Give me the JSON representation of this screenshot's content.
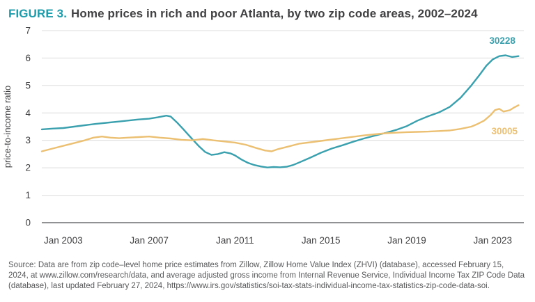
{
  "figure": {
    "label": "FIGURE 3.",
    "label_color": "#1d9cab",
    "title": "Home prices in rich and poor Atlanta, by two zip code areas, 2002–2024",
    "title_color": "#414042"
  },
  "chart_data": {
    "type": "line",
    "title": "Home prices in rich and poor Atlanta, by two zip code areas, 2002–2024",
    "xlabel": "",
    "ylabel": "price-to-income ratio",
    "ylim": [
      0,
      7
    ],
    "yticks": [
      0,
      1,
      2,
      3,
      4,
      5,
      6,
      7
    ],
    "xlim": [
      2002,
      2024.45
    ],
    "xticks": [
      {
        "year": 2003,
        "label": "Jan 2003"
      },
      {
        "year": 2007,
        "label": "Jan 2007"
      },
      {
        "year": 2011,
        "label": "Jan 2011"
      },
      {
        "year": 2015,
        "label": "Jan 2015"
      },
      {
        "year": 2019,
        "label": "Jan 2019"
      },
      {
        "year": 2023,
        "label": "Jan 2023"
      }
    ],
    "grid": "horizontal gridlines at integer values, baseline darker",
    "legend_position": "end-of-line labels at right",
    "axis_text_color": "#414042",
    "gridline_color": "#dcdcdc",
    "baseline_color": "#6d6e71",
    "series": [
      {
        "name": "30228",
        "color": "#3aa0ae",
        "label_pos": [
          2023.45,
          6.52
        ],
        "points": [
          [
            2002,
            3.4
          ],
          [
            2002.5,
            3.43
          ],
          [
            2003,
            3.45
          ],
          [
            2003.5,
            3.5
          ],
          [
            2004,
            3.55
          ],
          [
            2004.5,
            3.6
          ],
          [
            2005,
            3.64
          ],
          [
            2005.5,
            3.68
          ],
          [
            2006,
            3.72
          ],
          [
            2006.5,
            3.76
          ],
          [
            2007,
            3.79
          ],
          [
            2007.4,
            3.84
          ],
          [
            2007.8,
            3.9
          ],
          [
            2008,
            3.87
          ],
          [
            2008.3,
            3.65
          ],
          [
            2008.6,
            3.4
          ],
          [
            2009,
            3.05
          ],
          [
            2009.3,
            2.8
          ],
          [
            2009.6,
            2.58
          ],
          [
            2009.9,
            2.47
          ],
          [
            2010.2,
            2.5
          ],
          [
            2010.5,
            2.57
          ],
          [
            2010.8,
            2.52
          ],
          [
            2011,
            2.45
          ],
          [
            2011.3,
            2.3
          ],
          [
            2011.6,
            2.18
          ],
          [
            2011.9,
            2.1
          ],
          [
            2012.2,
            2.05
          ],
          [
            2012.5,
            2.01
          ],
          [
            2012.8,
            2.03
          ],
          [
            2013.1,
            2.02
          ],
          [
            2013.4,
            2.04
          ],
          [
            2013.7,
            2.1
          ],
          [
            2014,
            2.2
          ],
          [
            2014.5,
            2.37
          ],
          [
            2015,
            2.55
          ],
          [
            2015.5,
            2.7
          ],
          [
            2016,
            2.82
          ],
          [
            2016.5,
            2.95
          ],
          [
            2017,
            3.07
          ],
          [
            2017.5,
            3.17
          ],
          [
            2018,
            3.27
          ],
          [
            2018.5,
            3.38
          ],
          [
            2019,
            3.52
          ],
          [
            2019.5,
            3.72
          ],
          [
            2020,
            3.88
          ],
          [
            2020.5,
            4.02
          ],
          [
            2021,
            4.22
          ],
          [
            2021.5,
            4.55
          ],
          [
            2022,
            5.0
          ],
          [
            2022.4,
            5.4
          ],
          [
            2022.7,
            5.72
          ],
          [
            2023,
            5.95
          ],
          [
            2023.3,
            6.07
          ],
          [
            2023.6,
            6.1
          ],
          [
            2023.9,
            6.04
          ],
          [
            2024.2,
            6.07
          ]
        ]
      },
      {
        "name": "30005",
        "color": "#ecc073",
        "label_pos": [
          2023.55,
          3.22
        ],
        "points": [
          [
            2002,
            2.6
          ],
          [
            2002.5,
            2.7
          ],
          [
            2003,
            2.8
          ],
          [
            2003.5,
            2.9
          ],
          [
            2004,
            3.0
          ],
          [
            2004.4,
            3.1
          ],
          [
            2004.8,
            3.14
          ],
          [
            2005.2,
            3.1
          ],
          [
            2005.6,
            3.08
          ],
          [
            2006,
            3.1
          ],
          [
            2006.5,
            3.12
          ],
          [
            2007,
            3.14
          ],
          [
            2007.5,
            3.1
          ],
          [
            2008,
            3.07
          ],
          [
            2008.5,
            3.02
          ],
          [
            2009,
            3.0
          ],
          [
            2009.5,
            3.05
          ],
          [
            2010,
            3.0
          ],
          [
            2010.5,
            2.96
          ],
          [
            2011,
            2.92
          ],
          [
            2011.5,
            2.84
          ],
          [
            2012,
            2.72
          ],
          [
            2012.4,
            2.63
          ],
          [
            2012.7,
            2.6
          ],
          [
            2013,
            2.68
          ],
          [
            2013.5,
            2.78
          ],
          [
            2014,
            2.88
          ],
          [
            2014.5,
            2.93
          ],
          [
            2015,
            2.98
          ],
          [
            2015.5,
            3.03
          ],
          [
            2016,
            3.08
          ],
          [
            2016.5,
            3.13
          ],
          [
            2017,
            3.18
          ],
          [
            2017.5,
            3.22
          ],
          [
            2018,
            3.26
          ],
          [
            2018.5,
            3.28
          ],
          [
            2019,
            3.3
          ],
          [
            2019.5,
            3.31
          ],
          [
            2020,
            3.32
          ],
          [
            2020.5,
            3.34
          ],
          [
            2021,
            3.36
          ],
          [
            2021.5,
            3.42
          ],
          [
            2022,
            3.5
          ],
          [
            2022.3,
            3.6
          ],
          [
            2022.6,
            3.72
          ],
          [
            2022.9,
            3.92
          ],
          [
            2023.1,
            4.1
          ],
          [
            2023.3,
            4.15
          ],
          [
            2023.5,
            4.05
          ],
          [
            2023.8,
            4.1
          ],
          [
            2024,
            4.2
          ],
          [
            2024.2,
            4.28
          ]
        ]
      }
    ]
  },
  "source": {
    "text": "Source: Data are from zip code–level home price estimates from Zillow, Zillow Home Value Index (ZHVI) (database), accessed February 15, 2024, at www.zillow.com/research/data, and average adjusted gross income from Internal Revenue Service, Individual Income Tax ZIP Code Data (database), last updated February 27, 2024, https://www.irs.gov/statistics/soi-tax-stats-individual-income-tax-statistics-zip-code-data-soi."
  }
}
